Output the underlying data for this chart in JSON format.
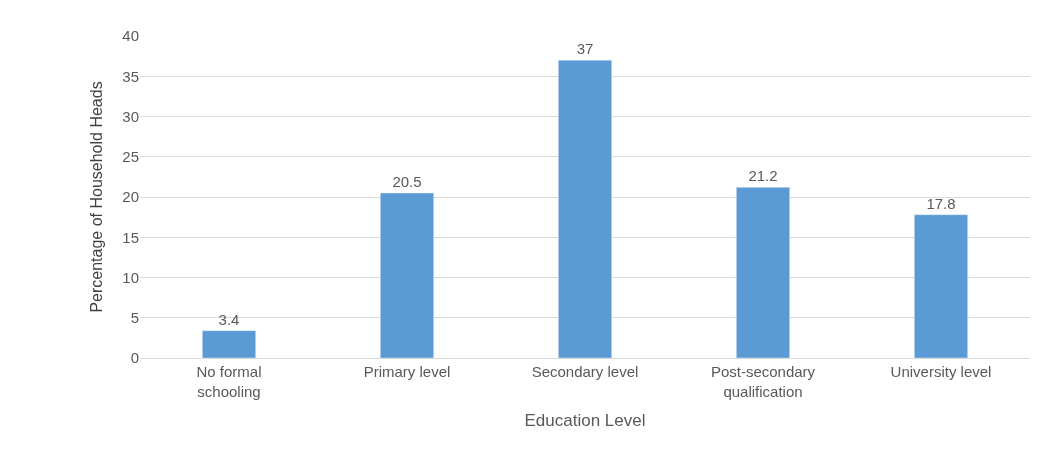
{
  "chart_data": {
    "type": "bar",
    "xlabel": "Education Level",
    "ylabel": "Percentage of Household Heads",
    "categories": [
      "No formal schooling",
      "Primary level",
      "Secondary level",
      "Post-secondary qualification",
      "University level"
    ],
    "values": [
      3.4,
      20.5,
      37,
      21.2,
      17.8
    ],
    "color": "#5b9bd5",
    "ylim": [
      0,
      40
    ],
    "yticks": [
      0,
      5,
      10,
      15,
      20,
      25,
      30,
      35,
      40
    ],
    "grid": "y",
    "data_labels": true
  }
}
